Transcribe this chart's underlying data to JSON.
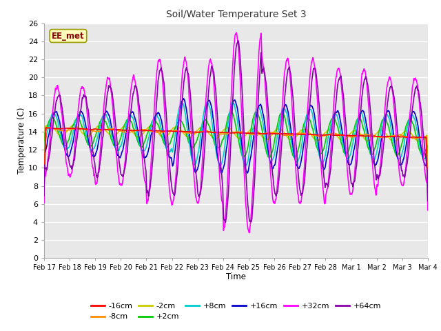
{
  "title": "Soil/Water Temperature Set 3",
  "xlabel": "Time",
  "ylabel": "Temperature (C)",
  "ylim": [
    0,
    26
  ],
  "xlim": [
    0,
    15
  ],
  "xtick_labels": [
    "Feb 17",
    "Feb 18",
    "Feb 19",
    "Feb 20",
    "Feb 21",
    "Feb 22",
    "Feb 23",
    "Feb 24",
    "Feb 25",
    "Feb 26",
    "Feb 27",
    "Feb 28",
    "Mar 1",
    "Mar 2",
    "Mar 3",
    "Mar 4"
  ],
  "series": {
    "-16cm": {
      "color": "#ff0000",
      "lw": 1.2
    },
    "-8cm": {
      "color": "#ff8c00",
      "lw": 1.2
    },
    "-2cm": {
      "color": "#cccc00",
      "lw": 1.2
    },
    "+2cm": {
      "color": "#00cc00",
      "lw": 1.2
    },
    "+8cm": {
      "color": "#00cccc",
      "lw": 1.2
    },
    "+16cm": {
      "color": "#0000cc",
      "lw": 1.2
    },
    "+32cm": {
      "color": "#ff00ff",
      "lw": 1.2
    },
    "+64cm": {
      "color": "#8800aa",
      "lw": 1.2
    }
  },
  "watermark": "EE_met",
  "bg_color": "#ffffff",
  "plot_bg": "#e8e8e8"
}
